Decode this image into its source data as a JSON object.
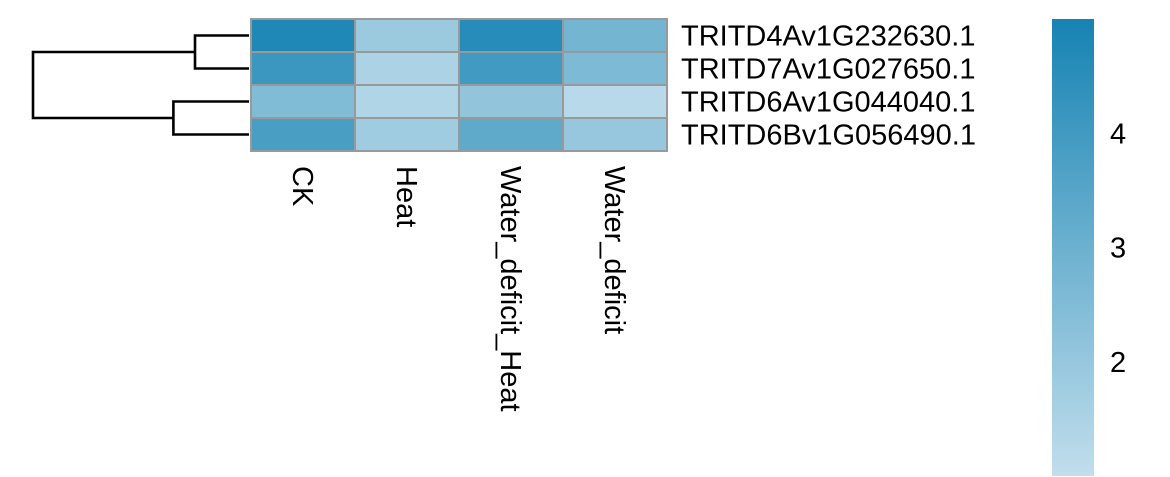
{
  "chart_data": {
    "type": "heatmap",
    "rows": [
      "TRITD4Av1G232630.1",
      "TRITD7Av1G027650.1",
      "TRITD6Av1G044040.1",
      "TRITD6Bv1G056490.1"
    ],
    "columns": [
      "CK",
      "Heat",
      "Water_deficit_Heat",
      "Water_deficit"
    ],
    "values": [
      [
        4.8,
        1.9,
        4.6,
        2.8
      ],
      [
        4.1,
        1.5,
        4.0,
        2.6
      ],
      [
        2.5,
        1.4,
        2.1,
        1.2
      ],
      [
        3.8,
        1.8,
        3.3,
        2.0
      ]
    ],
    "row_dendrogram": true,
    "cluster_merges": [
      {
        "left": [
          0
        ],
        "right": [
          1
        ],
        "height": 0.25
      },
      {
        "left": [
          2
        ],
        "right": [
          3
        ],
        "height": 0.35
      },
      {
        "left": [
          0,
          1
        ],
        "right": [
          2,
          3
        ],
        "height": 1.0
      }
    ],
    "color_scale": {
      "min": 1.0,
      "max": 5.0,
      "low_color": "#c1deec",
      "high_color": "#1683b3",
      "ticks": [
        2,
        3,
        4
      ]
    },
    "cell_border_color": "#999999",
    "legend_placement": "right"
  }
}
